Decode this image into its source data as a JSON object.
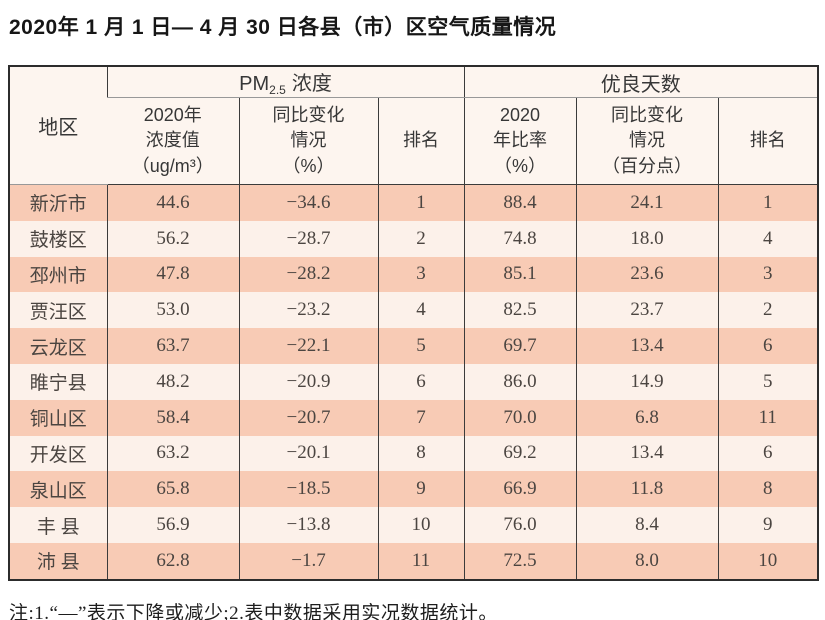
{
  "title": "2020年 1 月 1 日— 4 月 30 日各县（市）区空气质量情况",
  "table": {
    "corner_header": "地区",
    "pm_group": {
      "prefix": "PM",
      "sub": "2.5",
      "suffix": "浓度"
    },
    "good_group_label": "优良天数",
    "sub_headers": [
      "2020年\n浓度值\n（ug/m³）",
      "同比变化\n情况\n（%）",
      "排名",
      "2020\n年比率\n（%）",
      "同比变化\n情况\n（百分点）",
      "排名"
    ],
    "rows": [
      {
        "region": "新沂市",
        "pm_value": "44.6",
        "pm_change": "−34.6",
        "pm_rank": "1",
        "good_rate": "88.4",
        "good_change": "24.1",
        "good_rank": "1"
      },
      {
        "region": "鼓楼区",
        "pm_value": "56.2",
        "pm_change": "−28.7",
        "pm_rank": "2",
        "good_rate": "74.8",
        "good_change": "18.0",
        "good_rank": "4"
      },
      {
        "region": "邳州市",
        "pm_value": "47.8",
        "pm_change": "−28.2",
        "pm_rank": "3",
        "good_rate": "85.1",
        "good_change": "23.6",
        "good_rank": "3"
      },
      {
        "region": "贾汪区",
        "pm_value": "53.0",
        "pm_change": "−23.2",
        "pm_rank": "4",
        "good_rate": "82.5",
        "good_change": "23.7",
        "good_rank": "2"
      },
      {
        "region": "云龙区",
        "pm_value": "63.7",
        "pm_change": "−22.1",
        "pm_rank": "5",
        "good_rate": "69.7",
        "good_change": "13.4",
        "good_rank": "6"
      },
      {
        "region": "睢宁县",
        "pm_value": "48.2",
        "pm_change": "−20.9",
        "pm_rank": "6",
        "good_rate": "86.0",
        "good_change": "14.9",
        "good_rank": "5"
      },
      {
        "region": "铜山区",
        "pm_value": "58.4",
        "pm_change": "−20.7",
        "pm_rank": "7",
        "good_rate": "70.0",
        "good_change": "6.8",
        "good_rank": "11"
      },
      {
        "region": "开发区",
        "pm_value": "63.2",
        "pm_change": "−20.1",
        "pm_rank": "8",
        "good_rate": "69.2",
        "good_change": "13.4",
        "good_rank": "6"
      },
      {
        "region": "泉山区",
        "pm_value": "65.8",
        "pm_change": "−18.5",
        "pm_rank": "9",
        "good_rate": "66.9",
        "good_change": "11.8",
        "good_rank": "8"
      },
      {
        "region": "丰 县",
        "pm_value": "56.9",
        "pm_change": "−13.8",
        "pm_rank": "10",
        "good_rate": "76.0",
        "good_change": "8.4",
        "good_rank": "9"
      },
      {
        "region": "沛 县",
        "pm_value": "62.8",
        "pm_change": "−1.7",
        "pm_rank": "11",
        "good_rate": "72.5",
        "good_change": "8.0",
        "good_rank": "10"
      }
    ]
  },
  "note": "注:1.“—”表示下降或减少;2.表中数据采用实况数据统计。"
}
